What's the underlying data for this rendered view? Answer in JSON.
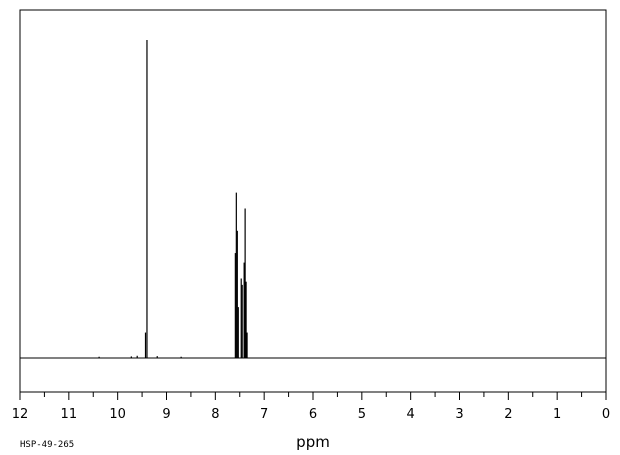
{
  "chart_data": {
    "type": "line",
    "title": "",
    "xlabel": "ppm",
    "ylabel": "",
    "xlim": [
      12,
      0
    ],
    "x_reversed": true,
    "grid": false,
    "legend": "none",
    "x_ticks": [
      12,
      11,
      10,
      9,
      8,
      7,
      6,
      5,
      4,
      3,
      2,
      1,
      0
    ],
    "x_tick_labels": [
      "12",
      "11",
      "10",
      "9",
      "8",
      "7",
      "6",
      "5",
      "4",
      "3",
      "2",
      "1",
      "0"
    ],
    "peaks": [
      {
        "ppm": 10.38,
        "intensity": 0.004
      },
      {
        "ppm": 9.72,
        "intensity": 0.005
      },
      {
        "ppm": 9.6,
        "intensity": 0.007
      },
      {
        "ppm": 9.43,
        "intensity": 0.08
      },
      {
        "ppm": 9.4,
        "intensity": 1.0
      },
      {
        "ppm": 9.19,
        "intensity": 0.006
      },
      {
        "ppm": 8.7,
        "intensity": 0.004
      },
      {
        "ppm": 7.59,
        "intensity": 0.33
      },
      {
        "ppm": 7.57,
        "intensity": 0.52
      },
      {
        "ppm": 7.55,
        "intensity": 0.4
      },
      {
        "ppm": 7.53,
        "intensity": 0.16
      },
      {
        "ppm": 7.47,
        "intensity": 0.25
      },
      {
        "ppm": 7.45,
        "intensity": 0.23
      },
      {
        "ppm": 7.41,
        "intensity": 0.3
      },
      {
        "ppm": 7.39,
        "intensity": 0.47
      },
      {
        "ppm": 7.37,
        "intensity": 0.24
      },
      {
        "ppm": 7.35,
        "intensity": 0.08
      }
    ],
    "annotation": "HSP-49-265"
  }
}
